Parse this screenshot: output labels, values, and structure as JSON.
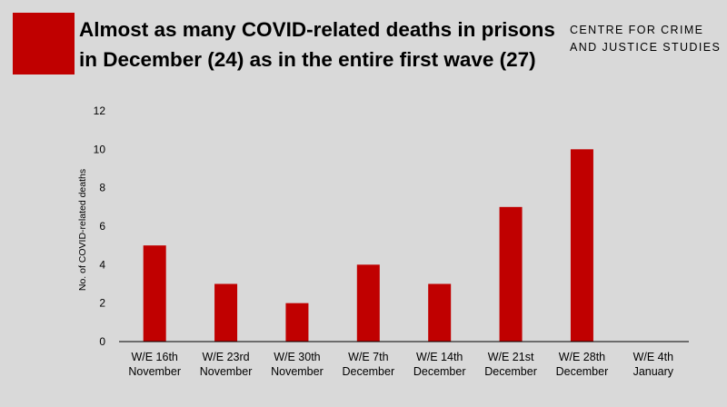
{
  "header": {
    "title_line1": "Almost as many COVID-related deaths in prisons",
    "title_line2": "in December (24) as in the entire first wave (27)",
    "brand_line1": "CENTRE FOR CRIME",
    "brand_line2": "AND JUSTICE STUDIES",
    "accent_color": "#c00000"
  },
  "chart_data": {
    "type": "bar",
    "title": "",
    "xlabel": "",
    "ylabel": "No. of COVID-related deaths",
    "categories": [
      [
        "W/E 16th",
        "November"
      ],
      [
        "W/E 23rd",
        "November"
      ],
      [
        "W/E 30th",
        "November"
      ],
      [
        "W/E 7th",
        "December"
      ],
      [
        "W/E 14th",
        "December"
      ],
      [
        "W/E 21st",
        "December"
      ],
      [
        "W/E 28th",
        "December"
      ],
      [
        "W/E 4th",
        "January"
      ]
    ],
    "values": [
      5,
      3,
      2,
      4,
      3,
      7,
      10,
      0
    ],
    "ylim": [
      0,
      12
    ],
    "yticks": [
      0,
      2,
      4,
      6,
      8,
      10,
      12
    ],
    "grid": false,
    "legend": "none",
    "bar_color": "#c00000"
  }
}
